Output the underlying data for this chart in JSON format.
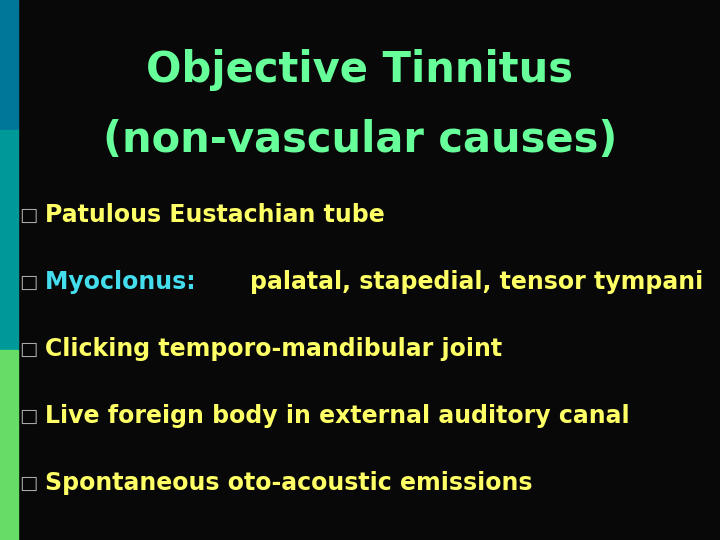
{
  "title_line1": "Objective Tinnitus",
  "title_line2": "(non-vascular causes)",
  "title_color": "#66ff99",
  "background_color": "#080808",
  "items": [
    {
      "full_text": "Patulous Eustachian tube",
      "prefix": "",
      "prefix_color": "#ffff66",
      "suffix": "Patulous Eustachian tube",
      "suffix_color": "#ffff66"
    },
    {
      "full_text": "Myoclonus: palatal, stapedial, tensor tympani",
      "prefix": "Myoclonus: ",
      "prefix_color": "#44ddee",
      "suffix": "palatal, stapedial, tensor tympani",
      "suffix_color": "#ffff66"
    },
    {
      "full_text": "Clicking temporo-mandibular joint",
      "prefix": "",
      "prefix_color": "#ffff66",
      "suffix": "Clicking temporo-mandibular joint",
      "suffix_color": "#ffff66"
    },
    {
      "full_text": "Live foreign body in external auditory canal",
      "prefix": "",
      "prefix_color": "#ffff66",
      "suffix": "Live foreign body in external auditory canal",
      "suffix_color": "#ffff66"
    },
    {
      "full_text": "Spontaneous oto-acoustic emissions",
      "prefix": "",
      "prefix_color": "#ffff66",
      "suffix": "Spontaneous oto-acoustic emissions",
      "suffix_color": "#ffff66"
    }
  ],
  "left_stripe_color_top": "#007799",
  "left_stripe_color_mid": "#009999",
  "left_stripe_color_bottom": "#66dd66",
  "figsize": [
    7.2,
    5.4
  ],
  "dpi": 100
}
